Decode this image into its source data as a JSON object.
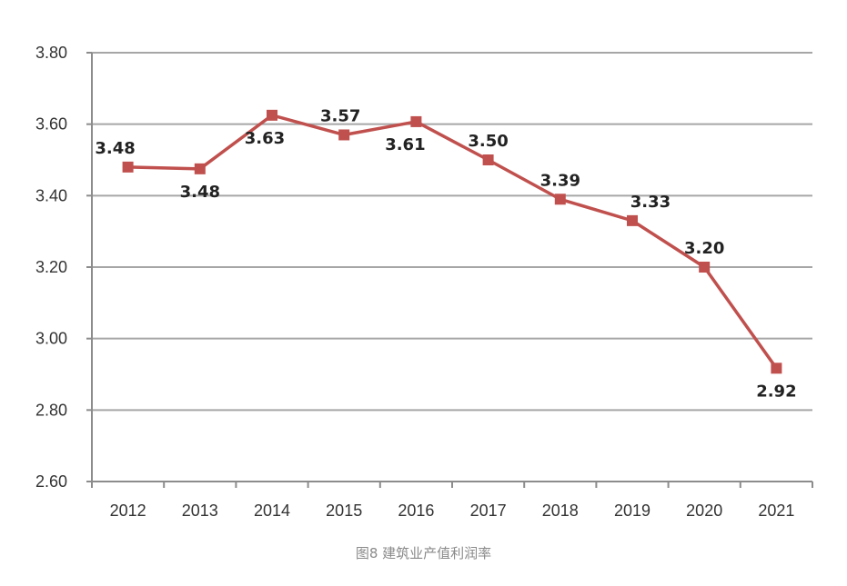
{
  "caption": "图8 建筑业产值利润率",
  "colors": {
    "series": "#c0504d",
    "grid": "#a6a6a6",
    "axis": "#8c8c8c",
    "caption": "#8a8a8a"
  },
  "chart_data": {
    "type": "line",
    "title": "",
    "xlabel": "",
    "ylabel": "",
    "categories": [
      "2012",
      "2013",
      "2014",
      "2015",
      "2016",
      "2017",
      "2018",
      "2019",
      "2020",
      "2021"
    ],
    "series": [
      {
        "values": [
          3.48,
          3.475,
          3.625,
          3.57,
          3.607,
          3.5,
          3.39,
          3.33,
          3.2,
          2.917
        ],
        "labels": [
          "3.48",
          "3.48",
          "3.63",
          "3.57",
          "3.61",
          "3.50",
          "3.39",
          "3.33",
          "3.20",
          "2.92"
        ],
        "marker": "square"
      }
    ],
    "ylim": [
      2.6,
      3.8
    ],
    "yticks": [
      "2.60",
      "2.80",
      "3.00",
      "3.20",
      "3.40",
      "3.60",
      "3.80"
    ],
    "grid": true,
    "legend": "none"
  }
}
